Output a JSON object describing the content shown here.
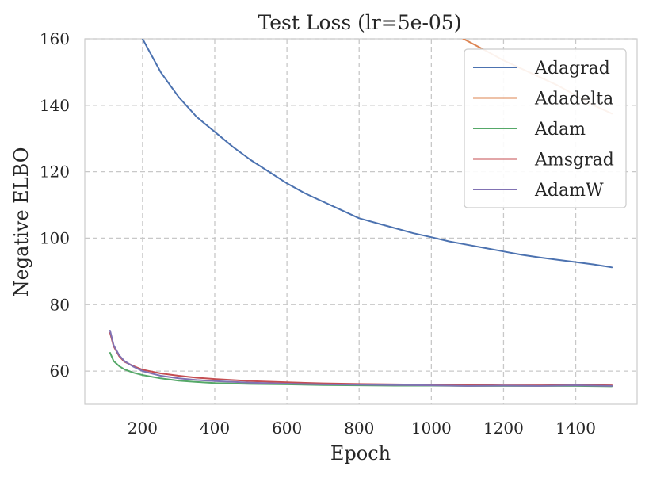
{
  "chart_data": {
    "type": "line",
    "title": "Test Loss (lr=5e-05)",
    "xlabel": "Epoch",
    "ylabel": "Negative ELBO",
    "xlim": [
      40,
      1570
    ],
    "ylim": [
      50,
      160
    ],
    "xticks": [
      200,
      400,
      600,
      800,
      1000,
      1200,
      1400
    ],
    "yticks": [
      60,
      80,
      100,
      120,
      140,
      160
    ],
    "grid": true,
    "legend_position": "top-right",
    "series": [
      {
        "name": "Adagrad",
        "color": "#4c72b0",
        "x": [
          200,
          250,
          300,
          350,
          400,
          450,
          500,
          550,
          600,
          650,
          700,
          750,
          800,
          850,
          900,
          950,
          1000,
          1050,
          1100,
          1150,
          1200,
          1250,
          1300,
          1350,
          1400,
          1450,
          1500
        ],
        "y": [
          160,
          150,
          142.5,
          136.5,
          132,
          127.5,
          123.5,
          120,
          116.5,
          113.5,
          111,
          108.5,
          106,
          104.5,
          103,
          101.5,
          100.3,
          99,
          98,
          97,
          96,
          95,
          94.2,
          93.5,
          92.8,
          92.1,
          91.2
        ]
      },
      {
        "name": "Adadelta",
        "color": "#dd8452",
        "x": [
          1080,
          1150,
          1200,
          1250,
          1300,
          1350,
          1400,
          1450,
          1500
        ],
        "y": [
          160.5,
          156.5,
          153.5,
          151,
          148.5,
          146,
          143,
          140,
          137.5
        ]
      },
      {
        "name": "Adam",
        "color": "#55a868",
        "x": [
          110,
          120,
          135,
          150,
          175,
          200,
          250,
          300,
          350,
          400,
          500,
          600,
          700,
          800,
          900,
          1000,
          1100,
          1200,
          1300,
          1400,
          1500
        ],
        "y": [
          65.5,
          63,
          61.5,
          60.5,
          59.5,
          58.8,
          57.8,
          57.1,
          56.7,
          56.4,
          56.1,
          56.0,
          55.8,
          55.7,
          55.6,
          55.6,
          55.5,
          55.5,
          55.5,
          55.5,
          55.4
        ]
      },
      {
        "name": "Amsgrad",
        "color": "#c44e52",
        "x": [
          110,
          120,
          135,
          150,
          175,
          200,
          250,
          300,
          350,
          400,
          500,
          600,
          700,
          800,
          900,
          1000,
          1100,
          1200,
          1300,
          1400,
          1500
        ],
        "y": [
          71.5,
          67.5,
          64.5,
          62.8,
          61.5,
          60.4,
          59.3,
          58.6,
          58.0,
          57.6,
          57.0,
          56.6,
          56.3,
          56.1,
          56.0,
          55.9,
          55.8,
          55.7,
          55.7,
          55.8,
          55.7
        ]
      },
      {
        "name": "AdamW",
        "color": "#8172b3",
        "x": [
          110,
          120,
          135,
          150,
          175,
          200,
          250,
          300,
          350,
          400,
          500,
          600,
          700,
          800,
          900,
          1000,
          1100,
          1200,
          1300,
          1400,
          1500
        ],
        "y": [
          72.2,
          67.8,
          64.8,
          63.0,
          61.3,
          60.0,
          58.6,
          57.8,
          57.3,
          57.0,
          56.5,
          56.2,
          56.0,
          55.9,
          55.8,
          55.7,
          55.5,
          55.6,
          55.5,
          55.7,
          55.5
        ]
      }
    ]
  }
}
